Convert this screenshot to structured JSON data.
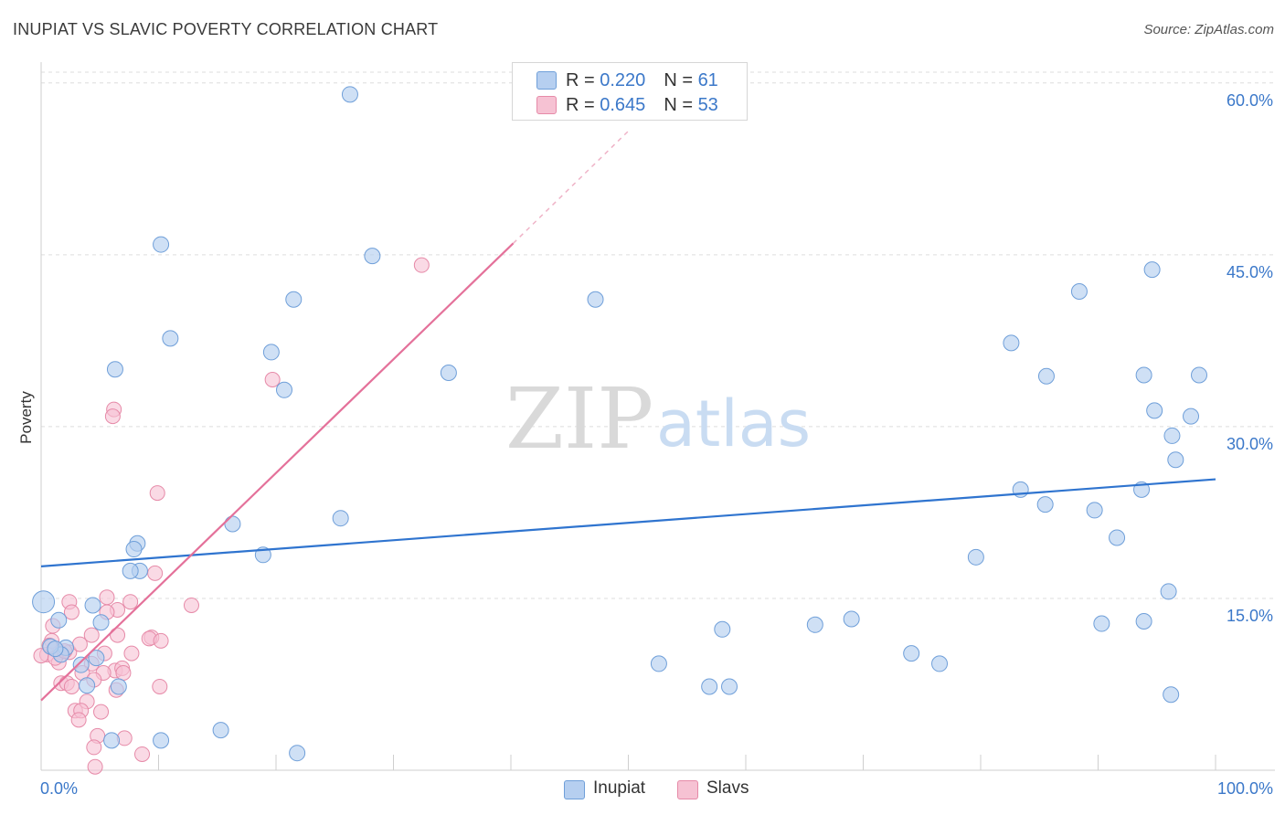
{
  "header": {
    "title": "INUPIAT VS SLAVIC POVERTY CORRELATION CHART",
    "source": "Source: ZipAtlas.com"
  },
  "colors": {
    "inupiat_fill": "#b6cff0",
    "inupiat_stroke": "#6f9fd9",
    "inupiat_line": "#2f74cf",
    "slavs_fill": "#f6c2d3",
    "slavs_stroke": "#e68aa8",
    "slavs_line": "#e4719a",
    "tick_label": "#3b78c9",
    "grid": "#dedede"
  },
  "legend": {
    "inupiat": {
      "r_label": "R = ",
      "r_value": "0.220",
      "n_label": "N = ",
      "n_value": "61"
    },
    "slavs": {
      "r_label": "R = ",
      "r_value": "0.645",
      "n_label": "N = ",
      "n_value": "53"
    }
  },
  "bottom_legend": {
    "inupiat": "Inupiat",
    "slavs": "Slavs"
  },
  "watermark": {
    "zip": "ZIP",
    "atlas": "atlas"
  },
  "chart_data": {
    "type": "scatter",
    "title": "INUPIAT VS SLAVIC POVERTY CORRELATION CHART",
    "xlabel": "",
    "ylabel": "Poverty",
    "xlim": [
      0,
      100
    ],
    "ylim": [
      0,
      61.5
    ],
    "x_tick_labels": {
      "min": "0.0%",
      "max": "100.0%"
    },
    "y_ticks": [
      {
        "value": 15,
        "label": "15.0%"
      },
      {
        "value": 30,
        "label": "30.0%"
      },
      {
        "value": 45,
        "label": "45.0%"
      },
      {
        "value": 60,
        "label": "60.0%"
      }
    ],
    "grid": true,
    "series": [
      {
        "name": "Inupiat",
        "trend": {
          "x": [
            0,
            100
          ],
          "y": [
            17.8,
            25.4
          ],
          "dashed_to": null
        },
        "points": [
          [
            26.3,
            59.0
          ],
          [
            10.2,
            45.9
          ],
          [
            28.2,
            44.9
          ],
          [
            21.5,
            41.1
          ],
          [
            47.2,
            41.1
          ],
          [
            11.0,
            37.7
          ],
          [
            19.6,
            36.5
          ],
          [
            6.3,
            35.0
          ],
          [
            20.7,
            33.2
          ],
          [
            34.7,
            34.7
          ],
          [
            82.6,
            37.3
          ],
          [
            88.4,
            41.8
          ],
          [
            94.6,
            43.7
          ],
          [
            85.6,
            34.4
          ],
          [
            93.9,
            34.5
          ],
          [
            98.6,
            34.5
          ],
          [
            94.8,
            31.4
          ],
          [
            97.9,
            30.9
          ],
          [
            96.3,
            29.2
          ],
          [
            96.6,
            27.1
          ],
          [
            16.3,
            21.5
          ],
          [
            25.5,
            22.0
          ],
          [
            18.9,
            18.8
          ],
          [
            8.2,
            19.8
          ],
          [
            7.9,
            19.3
          ],
          [
            8.4,
            17.4
          ],
          [
            7.6,
            17.4
          ],
          [
            79.6,
            18.6
          ],
          [
            83.4,
            24.5
          ],
          [
            85.5,
            23.2
          ],
          [
            89.7,
            22.7
          ],
          [
            91.6,
            20.3
          ],
          [
            93.7,
            24.5
          ],
          [
            96.0,
            15.6
          ],
          [
            0.2,
            14.7
          ],
          [
            4.4,
            14.4
          ],
          [
            1.5,
            13.1
          ],
          [
            5.1,
            12.9
          ],
          [
            2.1,
            10.7
          ],
          [
            1.7,
            10.1
          ],
          [
            0.8,
            10.8
          ],
          [
            4.7,
            9.8
          ],
          [
            3.4,
            9.2
          ],
          [
            3.9,
            7.4
          ],
          [
            6.6,
            7.3
          ],
          [
            6.0,
            2.6
          ],
          [
            10.2,
            2.6
          ],
          [
            15.3,
            3.5
          ],
          [
            21.8,
            1.5
          ],
          [
            65.9,
            12.7
          ],
          [
            69.0,
            13.2
          ],
          [
            58.0,
            12.3
          ],
          [
            74.1,
            10.2
          ],
          [
            76.5,
            9.3
          ],
          [
            52.6,
            9.3
          ],
          [
            56.9,
            7.3
          ],
          [
            58.6,
            7.3
          ],
          [
            90.3,
            12.8
          ],
          [
            93.9,
            13.0
          ],
          [
            96.2,
            6.6
          ],
          [
            1.2,
            10.6
          ]
        ]
      },
      {
        "name": "Slavs",
        "trend": {
          "x": [
            0,
            40.2
          ],
          "y": [
            6.1,
            46.0
          ],
          "dashed_to": {
            "x": 50.0,
            "y": 55.8
          }
        },
        "points": [
          [
            32.4,
            44.1
          ],
          [
            19.7,
            34.1
          ],
          [
            6.2,
            31.5
          ],
          [
            6.1,
            30.9
          ],
          [
            9.9,
            24.2
          ],
          [
            9.7,
            17.2
          ],
          [
            12.8,
            14.4
          ],
          [
            7.6,
            14.7
          ],
          [
            5.6,
            15.1
          ],
          [
            6.5,
            14.0
          ],
          [
            5.6,
            13.8
          ],
          [
            2.4,
            14.7
          ],
          [
            2.6,
            13.8
          ],
          [
            1.0,
            12.6
          ],
          [
            0.5,
            10.1
          ],
          [
            0.9,
            11.3
          ],
          [
            1.6,
            10.3
          ],
          [
            2.4,
            10.3
          ],
          [
            3.3,
            11.0
          ],
          [
            6.5,
            11.8
          ],
          [
            4.3,
            11.8
          ],
          [
            9.4,
            11.6
          ],
          [
            9.2,
            11.5
          ],
          [
            10.2,
            11.3
          ],
          [
            7.7,
            10.2
          ],
          [
            5.4,
            10.2
          ],
          [
            1.5,
            9.4
          ],
          [
            4.3,
            9.3
          ],
          [
            3.5,
            8.5
          ],
          [
            6.3,
            8.7
          ],
          [
            6.9,
            8.9
          ],
          [
            7.0,
            8.5
          ],
          [
            5.3,
            8.5
          ],
          [
            4.5,
            7.9
          ],
          [
            1.7,
            7.6
          ],
          [
            2.2,
            7.6
          ],
          [
            2.6,
            7.3
          ],
          [
            6.4,
            7.0
          ],
          [
            10.1,
            7.3
          ],
          [
            3.9,
            6.0
          ],
          [
            2.9,
            5.2
          ],
          [
            3.4,
            5.2
          ],
          [
            5.1,
            5.1
          ],
          [
            3.2,
            4.4
          ],
          [
            4.8,
            3.0
          ],
          [
            7.1,
            2.8
          ],
          [
            4.5,
            2.0
          ],
          [
            8.6,
            1.4
          ],
          [
            4.6,
            0.3
          ],
          [
            0.0,
            10.0
          ],
          [
            1.2,
            9.8
          ],
          [
            2.0,
            10.4
          ],
          [
            0.7,
            10.9
          ]
        ]
      }
    ]
  }
}
